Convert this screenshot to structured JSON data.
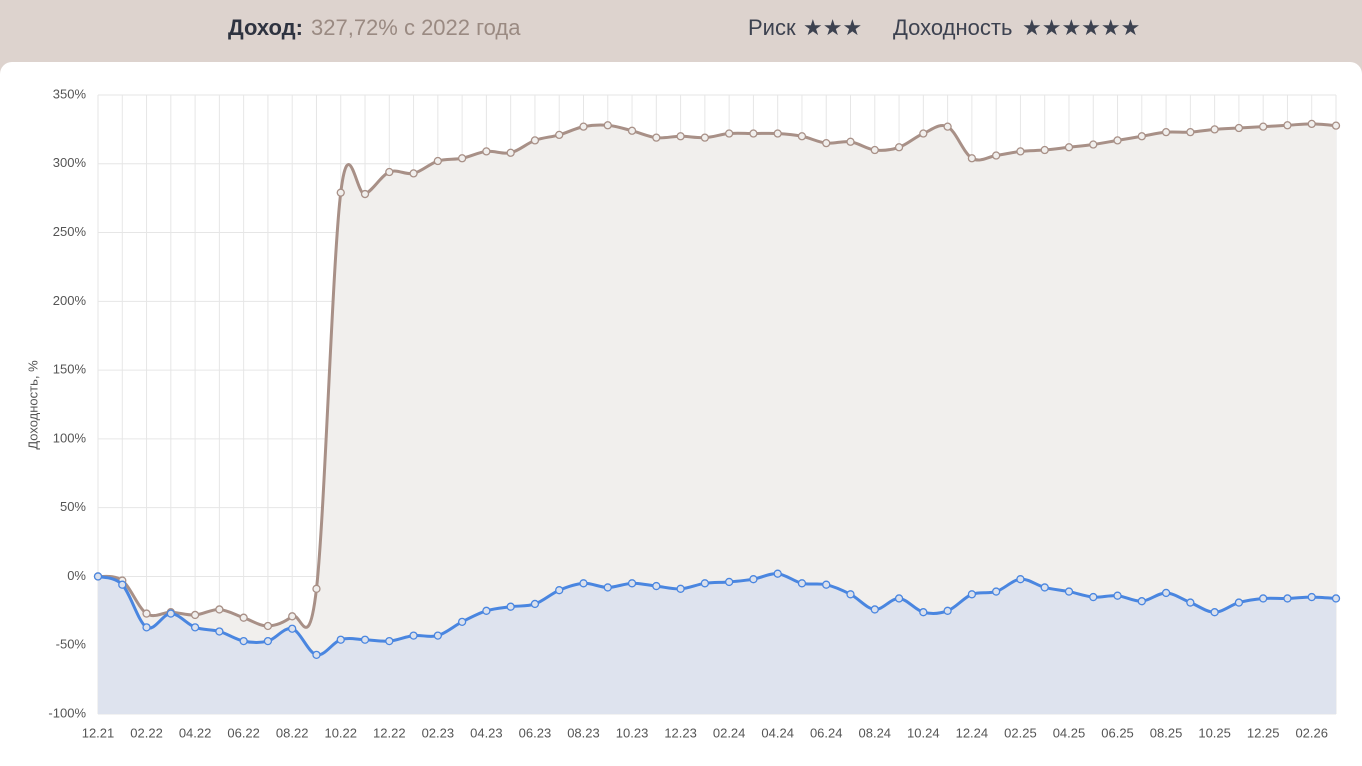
{
  "header": {
    "income_label": "Доход:",
    "income_value": "327,72% с 2022 года",
    "risk_label": "Риск",
    "risk_stars": "★★★",
    "yield_label": "Доходность",
    "yield_stars": "★★★★★★"
  },
  "chart_data": {
    "type": "line",
    "y_label": "Доходность, %",
    "categories": [
      "12.21",
      null,
      "02.22",
      null,
      "04.22",
      null,
      "06.22",
      null,
      "08.22",
      null,
      "10.22",
      null,
      "12.22",
      null,
      "02.23",
      null,
      "04.23",
      null,
      "06.23",
      null,
      "08.23",
      null,
      "10.23",
      null,
      "12.23",
      null,
      "02.24",
      null,
      "04.24",
      null,
      "06.24",
      null,
      "08.24",
      null,
      "10.24",
      null,
      "12.24",
      null,
      "02.25",
      null,
      "04.25",
      null,
      "06.25",
      null,
      "08.25",
      null,
      "10.25",
      null,
      "12.25",
      null,
      "02.26",
      null
    ],
    "series": [
      {
        "color": "#a89087",
        "fill": "#f1efed",
        "values": [
          0,
          -3,
          -27,
          -26,
          -28,
          -24,
          -30,
          -36,
          -29,
          -9,
          279,
          278,
          294,
          293,
          302,
          304,
          309,
          308,
          317,
          321,
          327,
          328,
          324,
          319,
          320,
          319,
          322,
          322,
          322,
          320,
          315,
          316,
          310,
          312,
          322,
          327,
          304,
          306,
          309,
          310,
          312,
          314,
          317,
          320,
          323,
          323,
          325,
          326,
          327,
          328,
          329,
          327.72
        ]
      },
      {
        "color": "#4a86e0",
        "fill": "#dbe1ed",
        "values": [
          0,
          -6,
          -37,
          -27,
          -37,
          -40,
          -47,
          -47,
          -38,
          -57,
          -46,
          -46,
          -47,
          -43,
          -43,
          -33,
          -25,
          -22,
          -20,
          -10,
          -5,
          -8,
          -5,
          -7,
          -9,
          -5,
          -4,
          -2,
          2,
          -5,
          -6,
          -13,
          -24,
          -16,
          -26,
          -25,
          -13,
          -11,
          -2,
          -8,
          -11,
          -15,
          -14,
          -18,
          -12,
          -19,
          -26,
          -19,
          -16,
          -16,
          -15,
          -16
        ]
      }
    ],
    "ylim": [
      -100,
      350
    ],
    "yticks": [
      {
        "value": -100,
        "label": "-100%"
      },
      {
        "value": -50,
        "label": "-50%"
      },
      {
        "value": 0,
        "label": "0%"
      },
      {
        "value": 50,
        "label": "50%"
      },
      {
        "value": 100,
        "label": "100%"
      },
      {
        "value": 150,
        "label": "150%"
      },
      {
        "value": 200,
        "label": "200%"
      },
      {
        "value": 250,
        "label": "250%"
      },
      {
        "value": 300,
        "label": "300%"
      },
      {
        "value": 350,
        "label": "350%"
      }
    ],
    "grid": true
  }
}
